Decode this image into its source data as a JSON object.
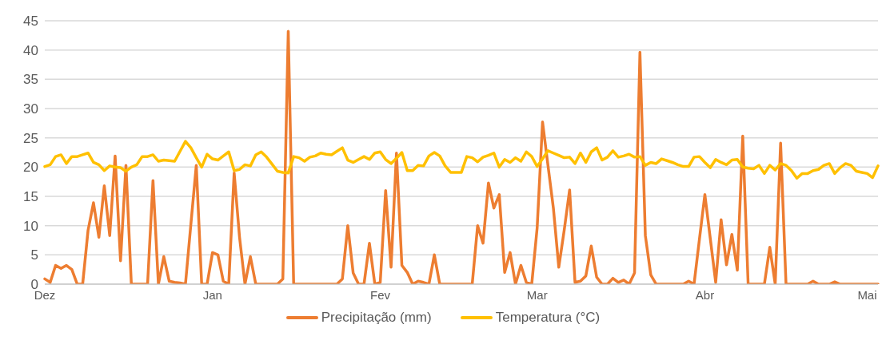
{
  "chart_data": {
    "type": "line",
    "categories": [
      "Dez",
      null,
      null,
      null,
      null,
      null,
      null,
      null,
      null,
      null,
      null,
      null,
      null,
      null,
      null,
      null,
      null,
      null,
      null,
      null,
      null,
      null,
      null,
      null,
      null,
      null,
      null,
      null,
      null,
      null,
      null,
      "Jan",
      null,
      null,
      null,
      null,
      null,
      null,
      null,
      null,
      null,
      null,
      null,
      null,
      null,
      null,
      null,
      null,
      null,
      null,
      null,
      null,
      null,
      null,
      null,
      null,
      null,
      null,
      null,
      null,
      null,
      null,
      "Fev",
      null,
      null,
      null,
      null,
      null,
      null,
      null,
      null,
      null,
      null,
      null,
      null,
      null,
      null,
      null,
      null,
      null,
      null,
      null,
      null,
      null,
      null,
      null,
      null,
      null,
      null,
      null,
      null,
      "Mar",
      null,
      null,
      null,
      null,
      null,
      null,
      null,
      null,
      null,
      null,
      null,
      null,
      null,
      null,
      null,
      null,
      null,
      null,
      null,
      null,
      null,
      null,
      null,
      null,
      null,
      null,
      null,
      null,
      null,
      null,
      "Abr",
      null,
      null,
      null,
      null,
      null,
      null,
      null,
      null,
      null,
      null,
      null,
      null,
      null,
      null,
      null,
      null,
      null,
      null,
      null,
      null,
      null,
      null,
      null,
      null,
      null,
      null,
      null,
      null,
      null,
      "Mai",
      null,
      null
    ],
    "ylim": [
      0,
      45
    ],
    "yticks": [
      0,
      5,
      10,
      15,
      20,
      25,
      30,
      35,
      40,
      45
    ],
    "grid": "y",
    "legend": "bottom",
    "marker": "none",
    "line_style": "solid",
    "series": [
      {
        "name": "Precipitação (mm)",
        "color": "#ed7d31",
        "values": [
          0.9,
          0.3,
          3.2,
          2.7,
          3.2,
          2.5,
          0,
          0,
          9.2,
          13.9,
          8,
          16.8,
          8.3,
          21.9,
          4,
          20.3,
          0,
          0,
          0,
          0,
          17.7,
          0,
          4.7,
          0.5,
          0.3,
          0.2,
          0,
          10.2,
          20.3,
          0,
          0,
          5.4,
          5,
          0.5,
          0,
          19,
          8,
          0,
          4.7,
          0,
          0,
          0,
          0,
          0,
          0.9,
          43.2,
          0,
          0,
          0,
          0,
          0,
          0,
          0,
          0,
          0,
          0.9,
          10,
          1.9,
          0,
          0,
          7,
          0,
          0.3,
          16,
          2.9,
          22.4,
          3.2,
          2,
          0,
          0.5,
          0.3,
          0,
          5,
          0,
          0,
          0,
          0,
          0,
          0,
          0,
          10,
          7,
          17.3,
          13,
          15.3,
          2,
          5.4,
          0,
          3.2,
          0.3,
          0,
          9.6,
          27.7,
          20.3,
          13,
          2.9,
          9.2,
          16.1,
          0.3,
          0.5,
          1.4,
          6.5,
          1.2,
          0,
          0,
          1,
          0.3,
          0.7,
          0,
          1.9,
          39.6,
          8.3,
          1.6,
          0,
          0,
          0,
          0,
          0,
          0,
          0.5,
          0,
          7.7,
          15.3,
          7.8,
          0.3,
          11,
          3.3,
          8.5,
          2.4,
          25.3,
          0,
          0,
          0,
          0,
          6.3,
          0,
          24.1,
          0,
          0,
          0,
          0,
          0,
          0.5,
          0,
          0,
          0,
          0.4,
          0,
          0,
          0,
          0,
          0,
          0,
          0,
          0
        ]
      },
      {
        "name": "Temperatura (°C)",
        "color": "#ffc000",
        "values": [
          20.1,
          20.4,
          21.8,
          22.1,
          20.6,
          21.8,
          21.8,
          22.1,
          22.4,
          20.8,
          20.4,
          19.4,
          20.2,
          20,
          19.9,
          19.3,
          20,
          20.4,
          21.8,
          21.8,
          22.1,
          21,
          21.2,
          21.1,
          21,
          22.7,
          24.4,
          23.3,
          21.6,
          20,
          22.2,
          21.4,
          21.2,
          21.9,
          22.6,
          19.4,
          19.6,
          20.4,
          20.2,
          22.1,
          22.6,
          21.7,
          20.5,
          19.3,
          19.1,
          19,
          21.8,
          21.6,
          21,
          21.7,
          21.9,
          22.4,
          22.2,
          22.1,
          22.7,
          23.3,
          21.2,
          20.8,
          21.3,
          21.8,
          21.3,
          22.4,
          22.6,
          21.3,
          20.6,
          21.5,
          22.5,
          19.4,
          19.4,
          20.3,
          20.2,
          21.9,
          22.5,
          21.9,
          20.2,
          19.1,
          19.1,
          19.1,
          21.8,
          21.6,
          20.9,
          21.7,
          22,
          22.4,
          20,
          21.3,
          20.8,
          21.6,
          21,
          22.6,
          21.8,
          20.1,
          21.4,
          22.8,
          22.4,
          22,
          21.6,
          21.7,
          20.6,
          22.4,
          20.8,
          22.6,
          23.3,
          21.2,
          21.7,
          22.8,
          21.7,
          21.9,
          22.2,
          21.7,
          21.8,
          20.3,
          20.8,
          20.6,
          21.4,
          21.1,
          20.8,
          20.4,
          20.1,
          20.1,
          21.7,
          21.8,
          20.8,
          19.9,
          21.3,
          20.8,
          20.4,
          21.2,
          21.3,
          20,
          19.8,
          19.7,
          20.3,
          18.9,
          20.3,
          19.5,
          20.6,
          20.3,
          19.4,
          18.1,
          18.9,
          18.9,
          19.4,
          19.6,
          20.3,
          20.6,
          18.9,
          19.9,
          20.6,
          20.3,
          19.3,
          19.1,
          18.9,
          18.2,
          20.2
        ]
      }
    ]
  }
}
